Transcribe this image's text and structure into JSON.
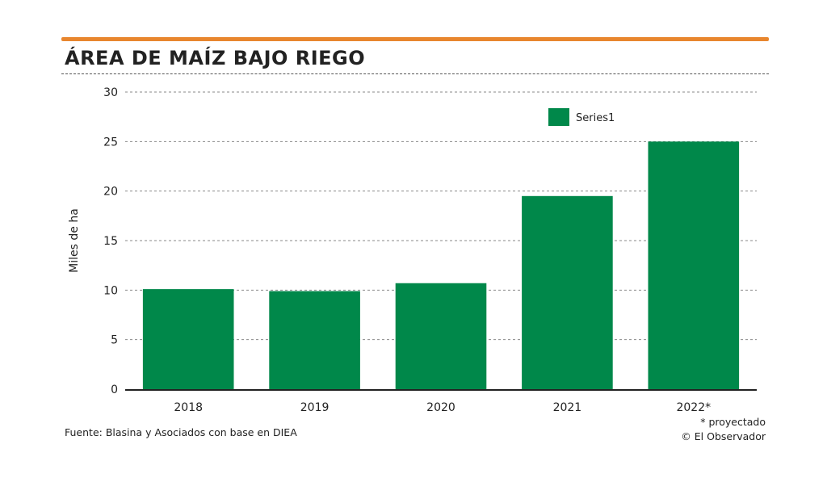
{
  "header": {
    "title": "ÁREA DE MAÍZ BAJO RIEGO"
  },
  "footer": {
    "source": "Fuente: Blasina y Asociados con base en DIEA",
    "note": "* proyectado",
    "credit": "© El Observador"
  },
  "colors": {
    "accent": "#e8862e",
    "bar": "#00884a"
  },
  "chart_data": {
    "type": "bar",
    "categories": [
      "2018",
      "2019",
      "2020",
      "2021",
      "2022*"
    ],
    "series": [
      {
        "name": "Series1",
        "values": [
          10.1,
          9.9,
          10.7,
          19.5,
          25.0
        ]
      }
    ],
    "xlabel": "",
    "ylabel": "Miles de ha",
    "ylim": [
      0,
      30
    ],
    "yticks": [
      0,
      5,
      10,
      15,
      20,
      25,
      30
    ],
    "grid": true,
    "legend_position": "top-right"
  }
}
